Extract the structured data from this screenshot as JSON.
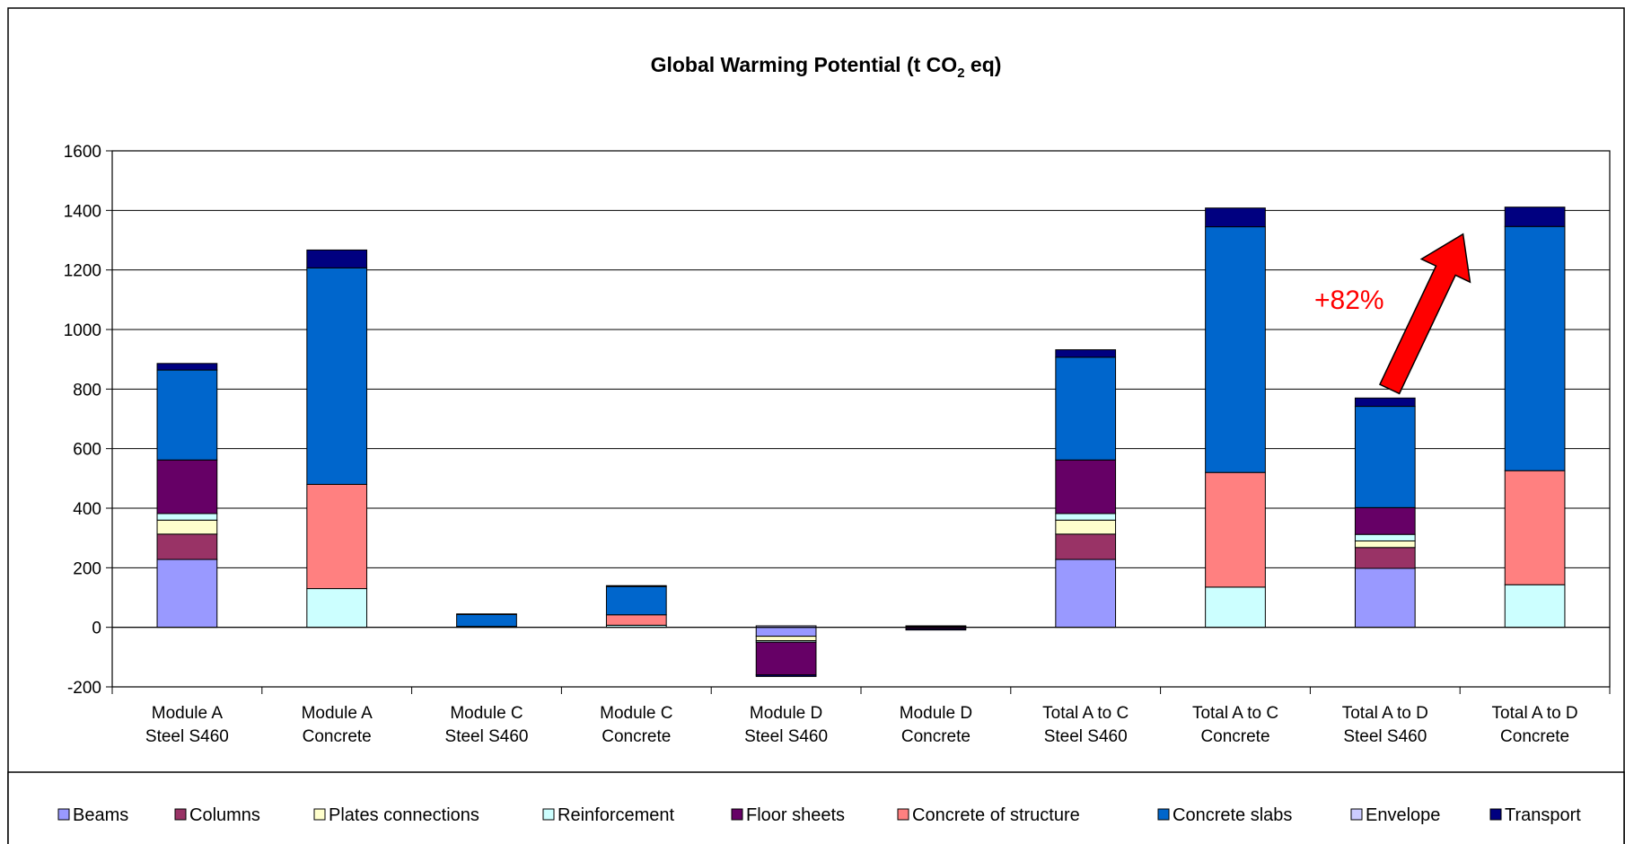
{
  "chart_data": {
    "type": "bar",
    "stacked": true,
    "title": "Global Warming Potential (t CO",
    "title_subscript": "2",
    "title_suffix": " eq)",
    "xlabel": "",
    "ylabel": "",
    "ylim": [
      -200,
      1600
    ],
    "yticks": [
      -200,
      0,
      200,
      400,
      600,
      800,
      1000,
      1200,
      1400,
      1600
    ],
    "grid": true,
    "legend_position": "bottom",
    "categories": [
      [
        "Module A",
        "Steel S460"
      ],
      [
        "Module A",
        "Concrete"
      ],
      [
        "Module C",
        "Steel S460"
      ],
      [
        "Module C",
        "Concrete"
      ],
      [
        "Module D",
        "Steel S460"
      ],
      [
        "Module D",
        "Concrete"
      ],
      [
        "Total A to C",
        "Steel S460"
      ],
      [
        "Total A to C",
        "Concrete"
      ],
      [
        "Total A to D",
        "Steel S460"
      ],
      [
        "Total A to D",
        "Concrete"
      ]
    ],
    "series": [
      {
        "name": "Beams",
        "color": "#9999ff",
        "values": [
          228,
          0,
          0,
          0,
          -30,
          0,
          228,
          0,
          198,
          0
        ]
      },
      {
        "name": "Columns",
        "color": "#993366",
        "values": [
          85,
          0,
          0,
          0,
          0,
          0,
          85,
          0,
          70,
          0
        ]
      },
      {
        "name": "Plates connections",
        "color": "#ffffcc",
        "values": [
          47,
          0,
          0,
          0,
          -15,
          0,
          47,
          0,
          22,
          0
        ]
      },
      {
        "name": "Reinforcement",
        "color": "#ccffff",
        "values": [
          22,
          130,
          0,
          7,
          -5,
          3,
          22,
          135,
          22,
          143
        ]
      },
      {
        "name": "Floor sheets",
        "color": "#660066",
        "values": [
          180,
          0,
          3,
          0,
          -110,
          -5,
          180,
          0,
          90,
          0
        ]
      },
      {
        "name": "Concrete of structure",
        "color": "#ff8080",
        "values": [
          0,
          350,
          0,
          35,
          0,
          0,
          0,
          385,
          0,
          383
        ]
      },
      {
        "name": "Concrete slabs",
        "color": "#0066cc",
        "values": [
          302,
          727,
          40,
          95,
          0,
          2,
          345,
          825,
          340,
          820
        ]
      },
      {
        "name": "Envelope",
        "color": "#ccccff",
        "values": [
          0,
          0,
          0,
          0,
          5,
          0,
          0,
          0,
          0,
          0
        ]
      },
      {
        "name": "Transport",
        "color": "#000080",
        "values": [
          22,
          60,
          2,
          3,
          -5,
          -4,
          25,
          63,
          28,
          65
        ]
      }
    ],
    "annotation": {
      "text": "+82%",
      "from_category": 8,
      "to_category": 9,
      "arrow_color": "#ff0000"
    }
  }
}
